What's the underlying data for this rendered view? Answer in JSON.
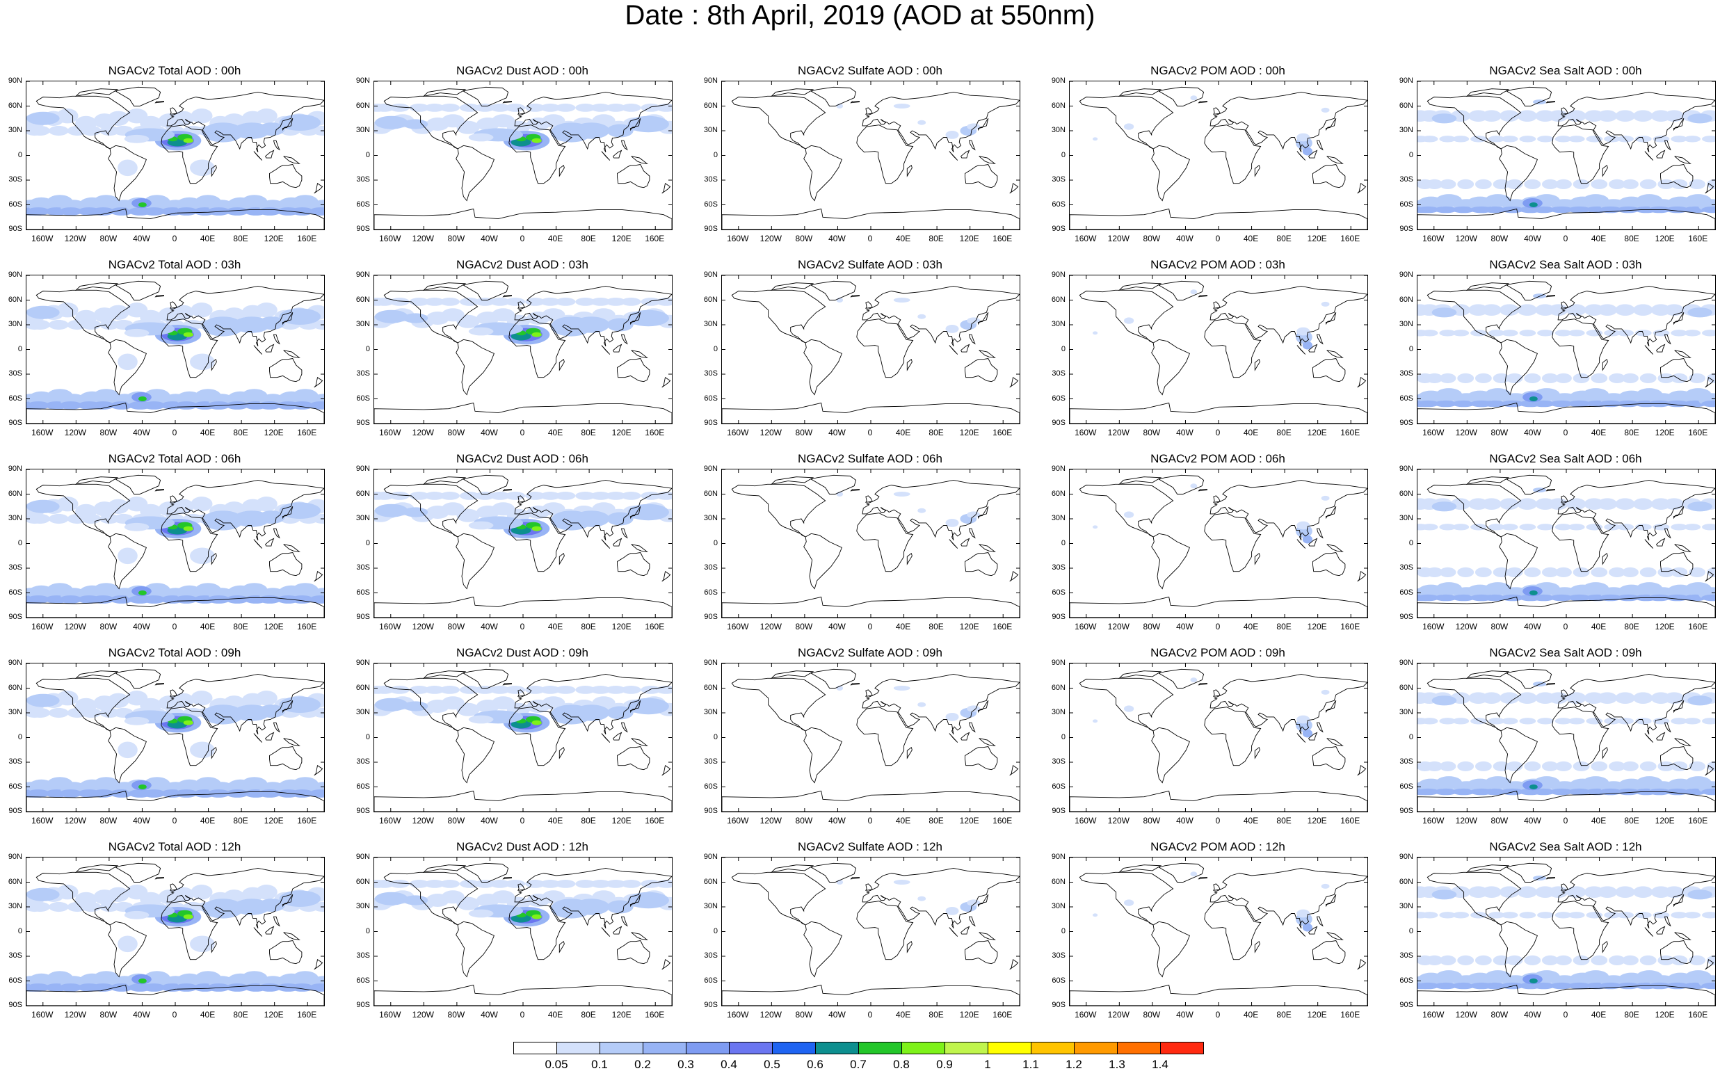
{
  "title": "Date : 8th April, 2019 (AOD at 550nm)",
  "panel_titles": [
    [
      "NGACv2 Total AOD : 00h",
      "NGACv2 Dust AOD : 00h",
      "NGACv2 Sulfate AOD : 00h",
      "NGACv2 POM AOD : 00h",
      "NGACv2 Sea Salt AOD : 00h"
    ],
    [
      "NGACv2 Total AOD : 03h",
      "NGACv2 Dust AOD : 03h",
      "NGACv2 Sulfate AOD : 03h",
      "NGACv2 POM AOD : 03h",
      "NGACv2 Sea Salt AOD : 03h"
    ],
    [
      "NGACv2 Total AOD : 06h",
      "NGACv2 Dust AOD : 06h",
      "NGACv2 Sulfate AOD : 06h",
      "NGACv2 POM AOD : 06h",
      "NGACv2 Sea Salt AOD : 06h"
    ],
    [
      "NGACv2 Total AOD : 09h",
      "NGACv2 Dust AOD : 09h",
      "NGACv2 Sulfate AOD : 09h",
      "NGACv2 POM AOD : 09h",
      "NGACv2 Sea Salt  AOD : 09h"
    ],
    [
      "NGACv2 Total AOD  : 12h",
      "NGACv2 Dust AOD : 12h",
      "NGACv2 Sulfate AOD : 12h",
      "NGACv2 POM  AOD : 12h",
      "NGACv2 Sea Salt AOD : 12h"
    ]
  ],
  "lat_ticks": [
    "90N",
    "60N",
    "30N",
    "0",
    "30S",
    "60S",
    "90S"
  ],
  "lon_ticks": [
    "160W",
    "120W",
    "80W",
    "40W",
    "0",
    "40E",
    "80E",
    "120E",
    "160E"
  ],
  "lon_tick_values": [
    -160,
    -120,
    -80,
    -40,
    0,
    40,
    80,
    120,
    160
  ],
  "lat_tick_values": [
    90,
    60,
    30,
    0,
    -30,
    -60,
    -90
  ],
  "colorbar": {
    "labels": [
      "0.05",
      "0.1",
      "0.2",
      "0.3",
      "0.4",
      "0.5",
      "0.6",
      "0.7",
      "0.8",
      "0.9",
      "1",
      "1.1",
      "1.2",
      "1.3",
      "1.4"
    ],
    "colors": [
      "#ffffff",
      "#d4e1fb",
      "#b5ccf8",
      "#98b4f5",
      "#7f9cf2",
      "#6b76f0",
      "#1f64f2",
      "#0d8f8f",
      "#23c62a",
      "#7ef21a",
      "#c0f54d",
      "#ffff00",
      "#ffc400",
      "#ff9a00",
      "#ff7000",
      "#ff2a10"
    ]
  }
}
